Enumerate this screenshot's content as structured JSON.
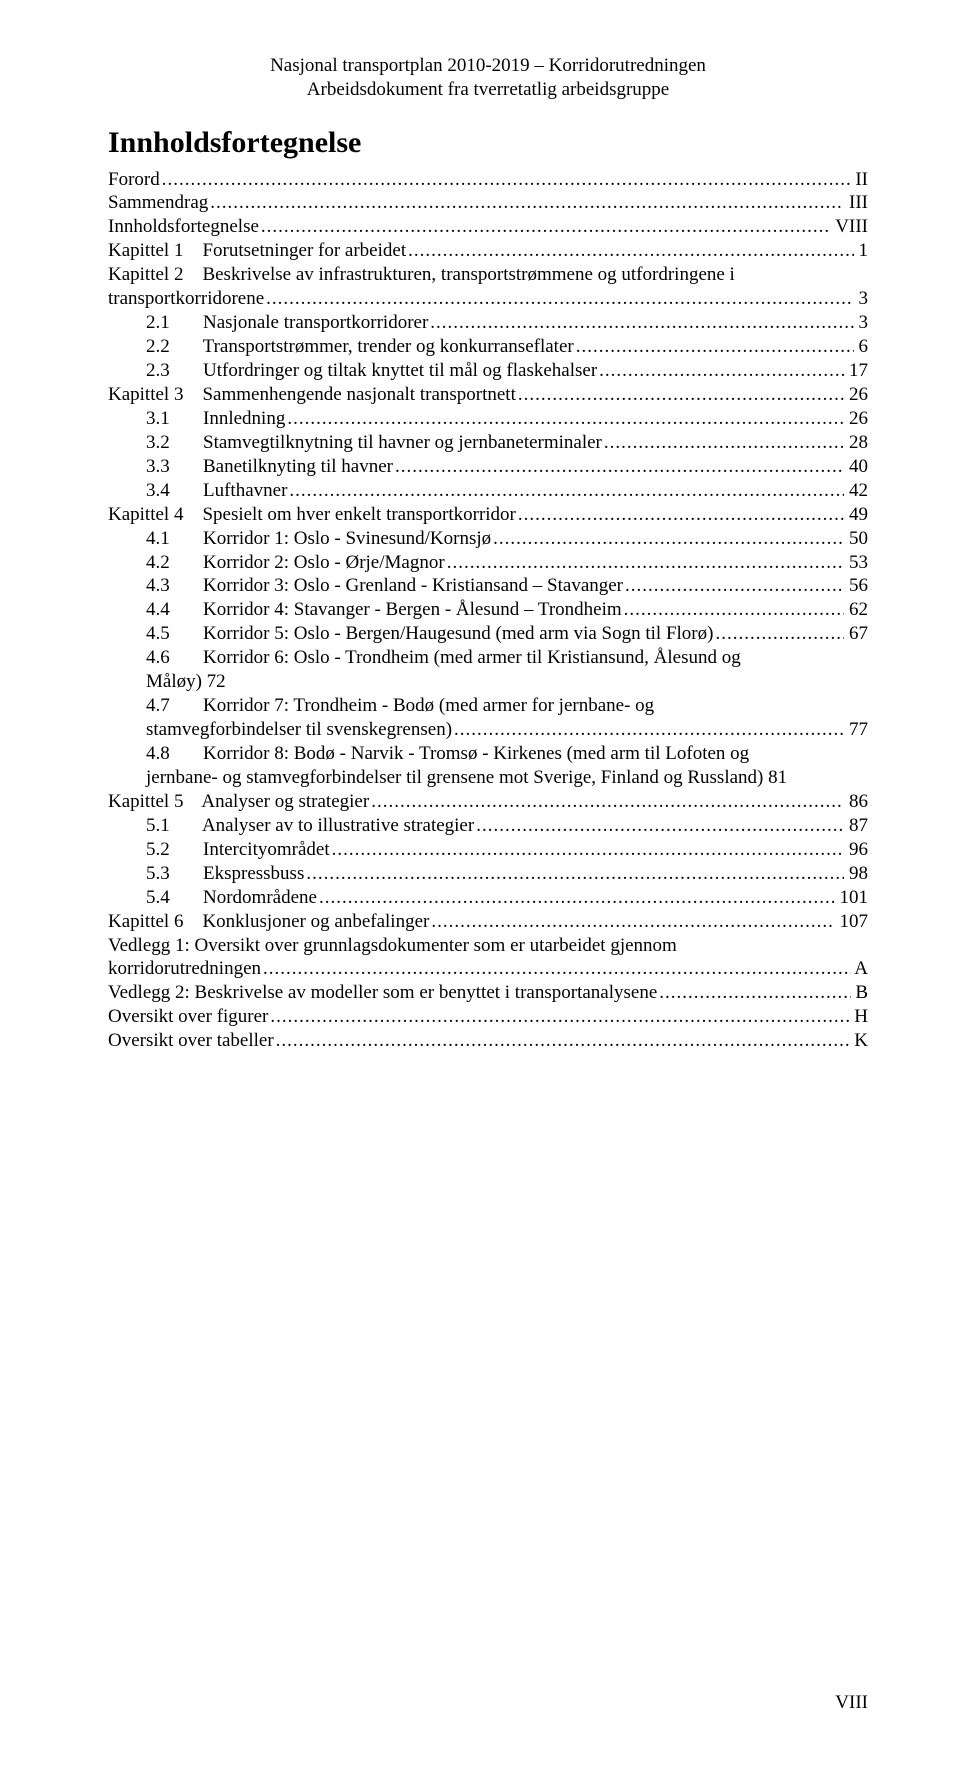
{
  "colors": {
    "text": "#000000",
    "background": "#ffffff"
  },
  "typography": {
    "body_font": "Times New Roman",
    "body_size_pt": 12,
    "title_size_pt": 18,
    "title_weight": "bold"
  },
  "header": {
    "line1": "Nasjonal transportplan 2010-2019 – Korridorutredningen",
    "line2": "Arbeidsdokument fra tverretatlig arbeidsgruppe"
  },
  "title": "Innholdsfortegnelse",
  "page_number": "VIII",
  "toc": [
    {
      "indent": 0,
      "label": "Forord",
      "page": "II"
    },
    {
      "indent": 0,
      "label": "Sammendrag",
      "page": "III"
    },
    {
      "indent": 0,
      "label": "Innholdsfortegnelse",
      "page": "VIII"
    },
    {
      "indent": 0,
      "label": "Kapittel 1    Forutsetninger for arbeidet",
      "page": "1"
    },
    {
      "indent": 0,
      "label": "Kapittel 2    Beskrivelse av infrastrukturen, transportstrømmene og utfordringene i",
      "cont": "transportkorridorene",
      "page": "3"
    },
    {
      "indent": 1,
      "label": "2.1       Nasjonale transportkorridorer",
      "page": "3"
    },
    {
      "indent": 1,
      "label": "2.2       Transportstrømmer, trender og konkurranseflater",
      "page": "6"
    },
    {
      "indent": 1,
      "label": "2.3       Utfordringer og tiltak knyttet til mål og flaskehalser",
      "page": "17"
    },
    {
      "indent": 0,
      "label": "Kapittel 3    Sammenhengende nasjonalt transportnett",
      "page": "26"
    },
    {
      "indent": 1,
      "label": "3.1       Innledning",
      "page": "26"
    },
    {
      "indent": 1,
      "label": "3.2       Stamvegtilknytning til havner og jernbaneterminaler",
      "page": "28"
    },
    {
      "indent": 1,
      "label": "3.3       Banetilknyting til havner",
      "page": "40"
    },
    {
      "indent": 1,
      "label": "3.4       Lufthavner",
      "page": "42"
    },
    {
      "indent": 0,
      "label": "Kapittel 4    Spesielt om hver enkelt transportkorridor",
      "page": "49"
    },
    {
      "indent": 1,
      "label": "4.1       Korridor 1: Oslo - Svinesund/Kornsjø",
      "page": "50"
    },
    {
      "indent": 1,
      "label": "4.2       Korridor 2: Oslo - Ørje/Magnor",
      "page": "53"
    },
    {
      "indent": 1,
      "label": "4.3       Korridor 3: Oslo - Grenland - Kristiansand – Stavanger",
      "page": "56"
    },
    {
      "indent": 1,
      "label": "4.4       Korridor 4: Stavanger - Bergen - Ålesund – Trondheim",
      "page": "62"
    },
    {
      "indent": 1,
      "label": "4.5       Korridor 5: Oslo - Bergen/Haugesund (med arm via Sogn til Florø)",
      "page": "67"
    },
    {
      "indent": 1,
      "label": "4.6       Korridor 6: Oslo - Trondheim (med armer til Kristiansund, Ålesund og",
      "cont": "Måløy) 72",
      "noleader": true,
      "page": ""
    },
    {
      "indent": 1,
      "label": "4.7       Korridor 7: Trondheim - Bodø (med armer for jernbane- og",
      "cont": "stamvegforbindelser til svenskegrensen)",
      "page": "77"
    },
    {
      "indent": 1,
      "label": "4.8       Korridor 8: Bodø - Narvik - Tromsø - Kirkenes (med arm til Lofoten og",
      "cont": "jernbane- og stamvegforbindelser til grensene mot Sverige, Finland og Russland) 81",
      "noleader": true,
      "page": ""
    },
    {
      "indent": 0,
      "label": "Kapittel 5    Analyser og strategier",
      "page": "86"
    },
    {
      "indent": 1,
      "label": "5.1       Analyser av to illustrative strategier",
      "page": "87"
    },
    {
      "indent": 1,
      "label": "5.2       Intercityområdet",
      "page": "96"
    },
    {
      "indent": 1,
      "label": "5.3       Ekspressbuss",
      "page": "98"
    },
    {
      "indent": 1,
      "label": "5.4       Nordområdene",
      "page": "101"
    },
    {
      "indent": 0,
      "label": "Kapittel 6    Konklusjoner og anbefalinger",
      "page": "107"
    },
    {
      "indent": 0,
      "label": "Vedlegg 1: Oversikt over grunnlagsdokumenter som er utarbeidet gjennom",
      "cont": "korridorutredningen",
      "page": "A"
    },
    {
      "indent": 0,
      "label": "Vedlegg 2: Beskrivelse av modeller som er benyttet i transportanalysene",
      "page": "B"
    },
    {
      "indent": 0,
      "label": "Oversikt over figurer",
      "page": "H"
    },
    {
      "indent": 0,
      "label": "Oversikt over tabeller",
      "page": "K"
    }
  ]
}
